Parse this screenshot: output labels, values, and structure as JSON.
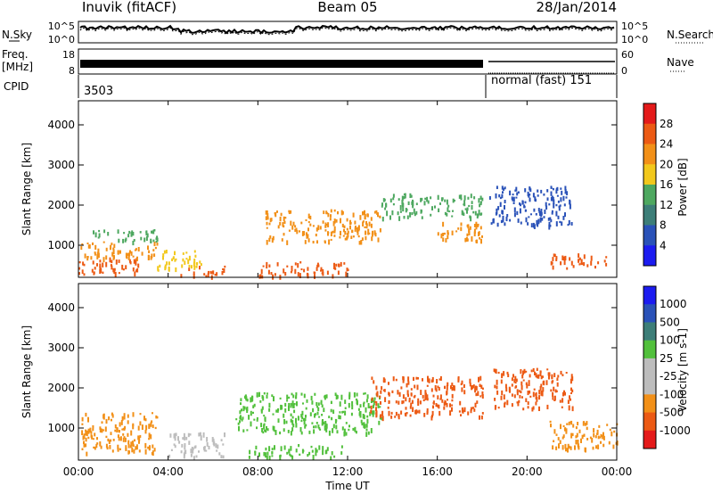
{
  "header": {
    "station": "Inuvik (fitACF)",
    "beam": "Beam 05",
    "date": "28/Jan/2014"
  },
  "noise_panel": {
    "left_label": "N.Sky",
    "right_label": "N.Search",
    "left_ticks": [
      "10^5",
      "10^0"
    ],
    "right_ticks": [
      "10^5",
      "10^0"
    ]
  },
  "freq_panel": {
    "left_label_top": "Freq.",
    "left_label_bottom": "[MHz]",
    "right_label": "Nave",
    "left_ticks": [
      "18",
      "8"
    ],
    "right_ticks": [
      "60",
      "0"
    ]
  },
  "cpid_panel": {
    "label": "CPID",
    "segments": [
      "3503",
      "normal (fast) 151"
    ]
  },
  "colors": {
    "power": [
      "#1c1cf0",
      "#2a52b8",
      "#3d7e78",
      "#4ea860",
      "#f2c81c",
      "#f29018",
      "#ec5a14",
      "#e41a1a"
    ],
    "velocity": [
      "#e41a1a",
      "#ec5a14",
      "#f29018",
      "#bdbdbd",
      "#bdbdbd",
      "#52c03c",
      "#3d7e78",
      "#2a52b8",
      "#1c1cf0"
    ]
  },
  "chart_data": [
    {
      "type": "heatmap",
      "title": "",
      "xlabel": "",
      "ylabel": "Slant Range [km]",
      "xlim": [
        "00:00",
        "00:00"
      ],
      "ylim": [
        200,
        4600
      ],
      "x_ticks": [
        "00:00",
        "04:00",
        "08:00",
        "12:00",
        "16:00",
        "20:00",
        "00:00"
      ],
      "y_ticks": [
        "1000",
        "2000",
        "3000",
        "4000"
      ],
      "colorbar": {
        "label": "Power [dB]",
        "ticks": [
          "4",
          "8",
          "12",
          "16",
          "20",
          "24",
          "28"
        ]
      },
      "regions": [
        {
          "t": [
            0.0,
            2.8
          ],
          "range": [
            300,
            700
          ],
          "level": "28"
        },
        {
          "t": [
            0.0,
            3.5
          ],
          "range": [
            700,
            1100
          ],
          "level": "24"
        },
        {
          "t": [
            0.5,
            3.6
          ],
          "range": [
            1100,
            1400
          ],
          "level": "16"
        },
        {
          "t": [
            3.5,
            5.5
          ],
          "range": [
            400,
            900
          ],
          "level": "20"
        },
        {
          "t": [
            4.5,
            6.5
          ],
          "range": [
            250,
            500
          ],
          "level": "28"
        },
        {
          "t": [
            8.0,
            12.0
          ],
          "range": [
            250,
            600
          ],
          "level": "28"
        },
        {
          "t": [
            8.3,
            13.5
          ],
          "range": [
            1100,
            1900
          ],
          "level": "24"
        },
        {
          "t": [
            13.5,
            18.0
          ],
          "range": [
            1700,
            2300
          ],
          "level": "16"
        },
        {
          "t": [
            16.0,
            18.0
          ],
          "range": [
            1100,
            1600
          ],
          "level": "24"
        },
        {
          "t": [
            18.3,
            22.0
          ],
          "range": [
            1500,
            2500
          ],
          "level": "8"
        },
        {
          "t": [
            21.0,
            23.5
          ],
          "range": [
            450,
            800
          ],
          "level": "28"
        }
      ]
    },
    {
      "type": "heatmap",
      "title": "",
      "xlabel": "Time UT",
      "ylabel": "Slant Range [km]",
      "xlim": [
        "00:00",
        "00:00"
      ],
      "ylim": [
        200,
        4600
      ],
      "x_ticks": [
        "00:00",
        "04:00",
        "08:00",
        "12:00",
        "16:00",
        "20:00",
        "00:00"
      ],
      "y_ticks": [
        "1000",
        "2000",
        "3000",
        "4000"
      ],
      "colorbar": {
        "label": "Velocity [m s-1]",
        "ticks": [
          "-1000",
          "-500",
          "-100",
          "-25",
          "25",
          "100",
          "500",
          "1000"
        ]
      },
      "regions": [
        {
          "t": [
            0.0,
            3.5
          ],
          "range": [
            400,
            1400
          ],
          "level": "-100"
        },
        {
          "t": [
            4.0,
            6.5
          ],
          "range": [
            300,
            900
          ],
          "level": "25"
        },
        {
          "t": [
            7.0,
            13.5
          ],
          "range": [
            900,
            1900
          ],
          "level": "100"
        },
        {
          "t": [
            7.5,
            12.0
          ],
          "range": [
            300,
            600
          ],
          "level": "100"
        },
        {
          "t": [
            13.0,
            18.0
          ],
          "range": [
            1300,
            2300
          ],
          "level": "-500"
        },
        {
          "t": [
            18.5,
            22.0
          ],
          "range": [
            1500,
            2500
          ],
          "level": "-500"
        },
        {
          "t": [
            21.0,
            24.0
          ],
          "range": [
            500,
            1200
          ],
          "level": "-100"
        }
      ]
    }
  ]
}
